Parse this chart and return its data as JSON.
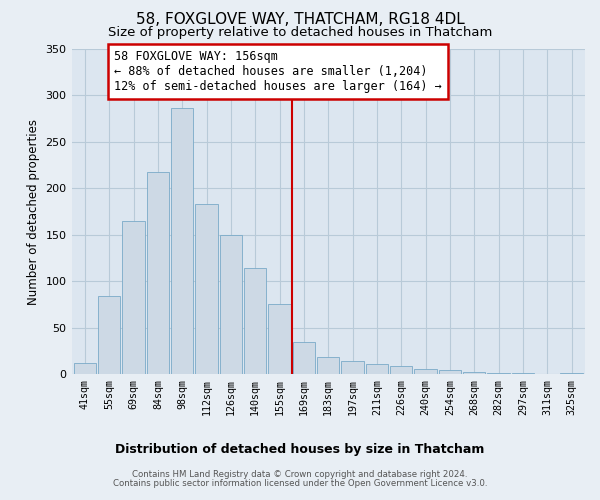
{
  "title": "58, FOXGLOVE WAY, THATCHAM, RG18 4DL",
  "subtitle": "Size of property relative to detached houses in Thatcham",
  "xlabel": "Distribution of detached houses by size in Thatcham",
  "ylabel": "Number of detached properties",
  "bar_color": "#cdd9e5",
  "bar_edge_color": "#7aaac8",
  "categories": [
    "41sqm",
    "55sqm",
    "69sqm",
    "84sqm",
    "98sqm",
    "112sqm",
    "126sqm",
    "140sqm",
    "155sqm",
    "169sqm",
    "183sqm",
    "197sqm",
    "211sqm",
    "226sqm",
    "240sqm",
    "254sqm",
    "268sqm",
    "282sqm",
    "297sqm",
    "311sqm",
    "325sqm"
  ],
  "values": [
    12,
    84,
    165,
    218,
    287,
    183,
    150,
    114,
    75,
    35,
    18,
    14,
    11,
    9,
    6,
    4,
    2,
    1,
    1,
    0,
    1
  ],
  "vline_x": 8.5,
  "vline_color": "#cc0000",
  "annotation_title": "58 FOXGLOVE WAY: 156sqm",
  "annotation_line1": "← 88% of detached houses are smaller (1,204)",
  "annotation_line2": "12% of semi-detached houses are larger (164) →",
  "annotation_box_color": "#ffffff",
  "annotation_box_edge": "#cc0000",
  "ylim": [
    0,
    350
  ],
  "yticks": [
    0,
    50,
    100,
    150,
    200,
    250,
    300,
    350
  ],
  "footer1": "Contains HM Land Registry data © Crown copyright and database right 2024.",
  "footer2": "Contains public sector information licensed under the Open Government Licence v3.0.",
  "bg_color": "#e8eef4",
  "plot_bg_color": "#dce6f0",
  "grid_color": "#b8cad8",
  "title_fontsize": 11,
  "subtitle_fontsize": 9.5,
  "xlabel_fontsize": 9,
  "ylabel_fontsize": 8.5,
  "annotation_fontsize": 8.5
}
